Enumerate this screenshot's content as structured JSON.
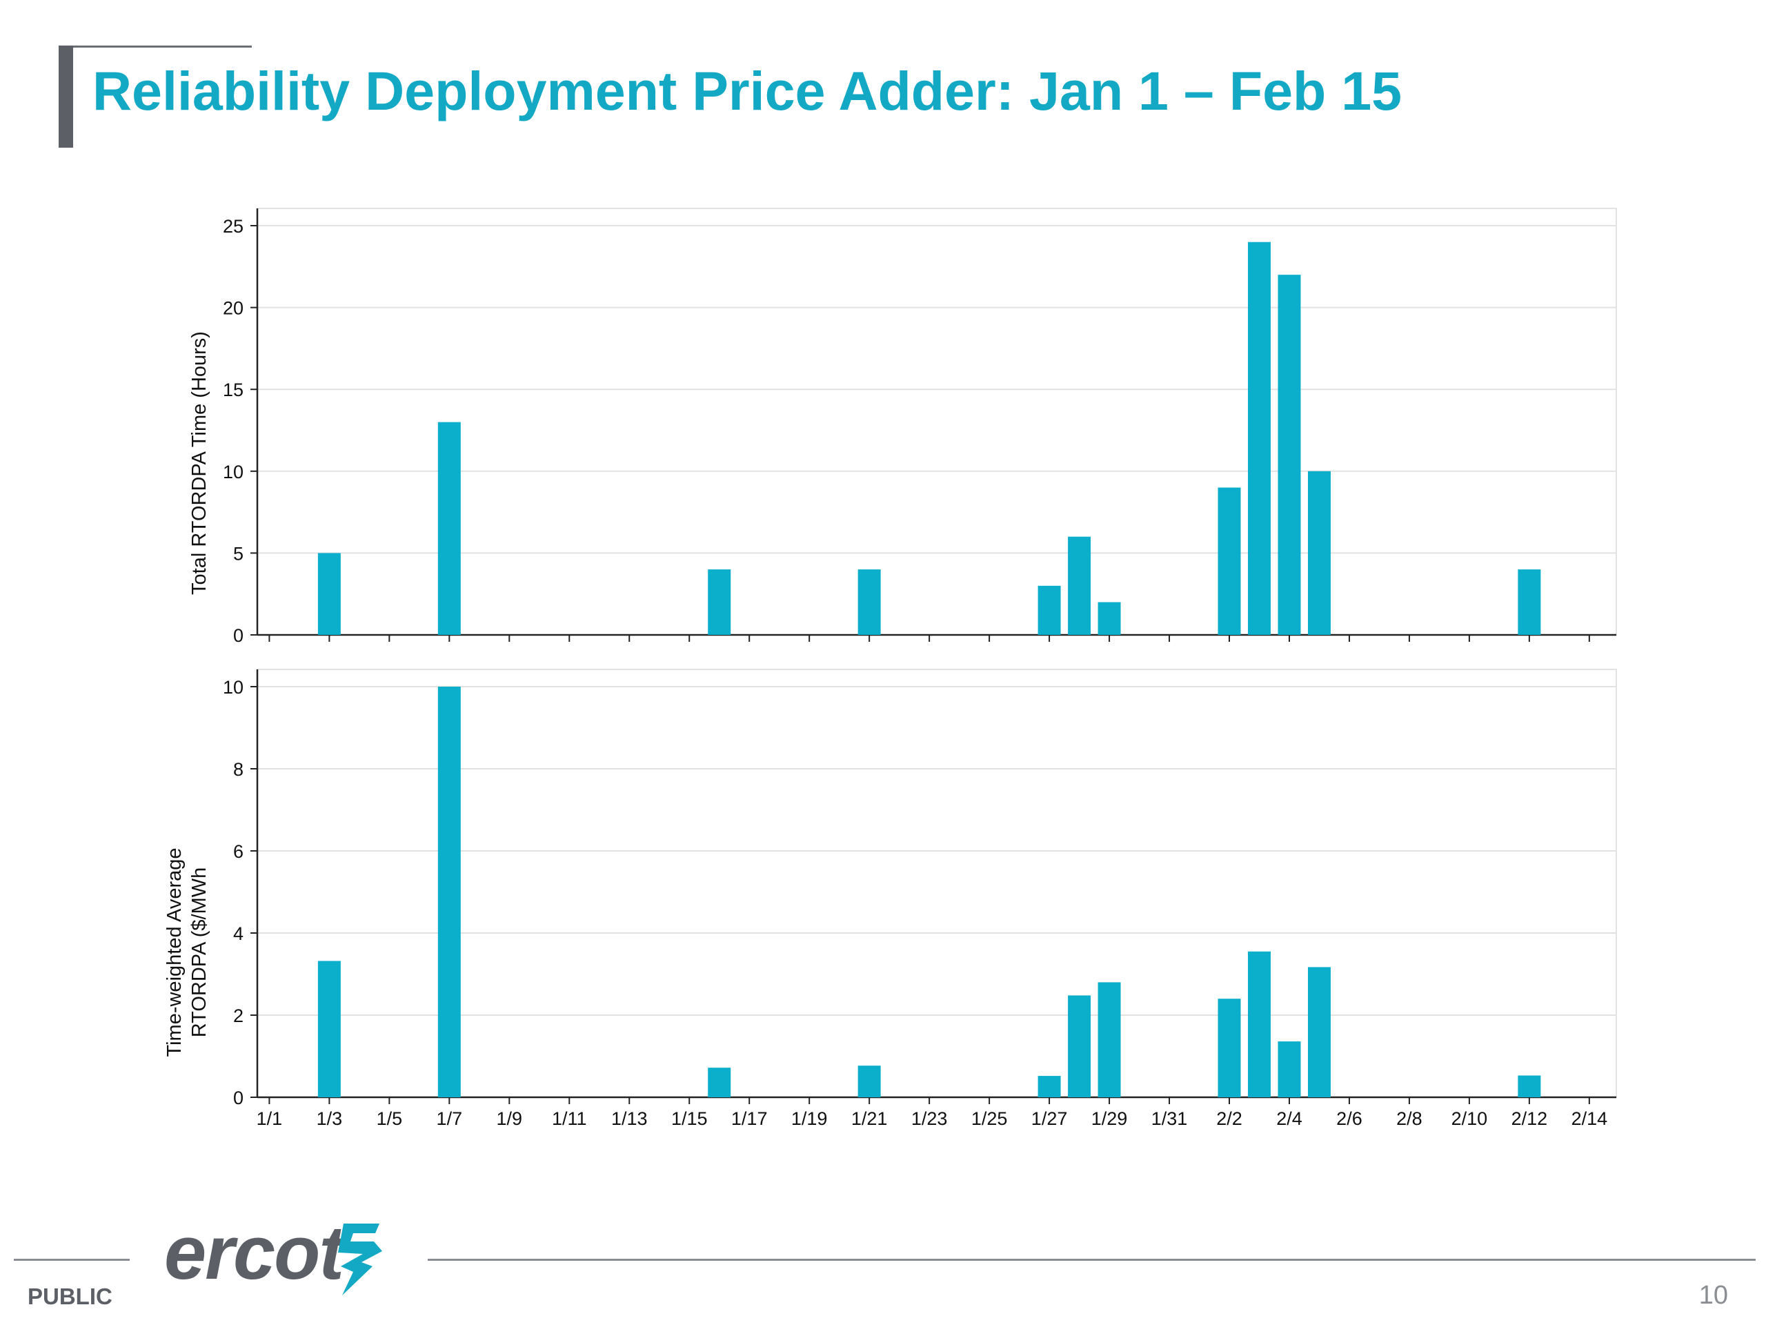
{
  "page": {
    "title": "Reliability Deployment Price Adder: Jan 1 – Feb 15",
    "footer_label": "PUBLIC",
    "page_number": "10",
    "logo_text": "ercot",
    "accent_color": "#13a9c4",
    "bar_color": "#0bafcb"
  },
  "chart_data": [
    {
      "type": "bar",
      "ylabel": "Total RTORDPA Time (Hours)",
      "xlabel": "",
      "ylim": [
        0,
        25
      ],
      "yticks": [
        0,
        5,
        10,
        15,
        20,
        25
      ],
      "grid": true,
      "x_dates": [
        "1/3",
        "1/7",
        "1/16",
        "1/21",
        "1/27",
        "1/28",
        "1/29",
        "2/2",
        "2/3",
        "2/4",
        "2/5",
        "2/12"
      ],
      "values": [
        5,
        13,
        4,
        4,
        3,
        6,
        2,
        9,
        24,
        22,
        10,
        4
      ]
    },
    {
      "type": "bar",
      "ylabel": "Time-weighted Average RTORDPA ($/MWh",
      "xlabel": "",
      "ylim": [
        0,
        10
      ],
      "yticks": [
        0,
        2,
        4,
        6,
        8,
        10
      ],
      "grid": true,
      "x_dates": [
        "1/3",
        "1/7",
        "1/16",
        "1/21",
        "1/27",
        "1/28",
        "1/29",
        "2/2",
        "2/3",
        "2/4",
        "2/5",
        "2/12"
      ],
      "values": [
        3.32,
        10.0,
        0.72,
        0.77,
        0.52,
        2.48,
        2.8,
        2.4,
        3.55,
        1.36,
        3.17,
        0.53
      ]
    }
  ],
  "x_axis": {
    "tick_labels": [
      "1/1",
      "1/3",
      "1/5",
      "1/7",
      "1/9",
      "1/11",
      "1/13",
      "1/15",
      "1/17",
      "1/19",
      "1/21",
      "1/23",
      "1/25",
      "1/27",
      "1/29",
      "1/31",
      "2/2",
      "2/4",
      "2/6",
      "2/8",
      "2/10",
      "2/12",
      "2/14"
    ],
    "range": [
      "1/1",
      "2/15"
    ]
  }
}
